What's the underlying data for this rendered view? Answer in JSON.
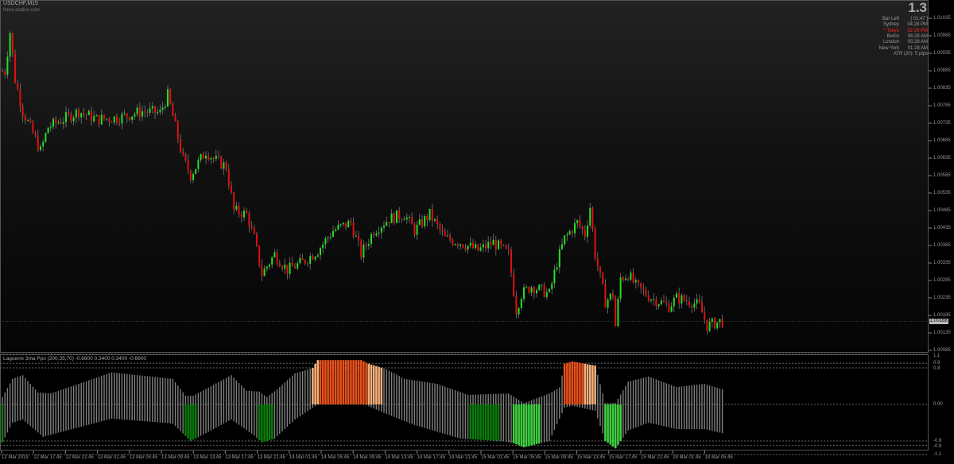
{
  "header": {
    "symbol": "USDCHF,M15",
    "site": "forex-station.com"
  },
  "info_panel": {
    "big_value": "1.3",
    "rows": [
      {
        "label": "Bar Left",
        "value": "[ 01:47 ]",
        "highlight": false
      },
      {
        "label": "Sydney",
        "value": "04:28 PM",
        "highlight": false
      },
      {
        "label": "* Tokyo",
        "value": "02:28 PM",
        "highlight": true
      },
      {
        "label": "Berlin",
        "value": "06:28 AM",
        "highlight": false
      },
      {
        "label": "London",
        "value": "05:28 AM",
        "highlight": false
      },
      {
        "label": "New York",
        "value": "01:28 AM",
        "highlight": false
      }
    ],
    "atr": "ATR (20): 5 pips",
    "highlight_color": "#ff2020"
  },
  "price_axis": {
    "labels": [
      "1.01035",
      "1.00985",
      "1.00935",
      "1.00885",
      "1.00835",
      "1.00785",
      "1.00735",
      "1.00685",
      "1.00635",
      "1.00585",
      "1.00535",
      "1.00485",
      "1.00435",
      "1.00385",
      "1.00335",
      "1.00285",
      "1.00235",
      "1.00185",
      "1.00135",
      "1.00085"
    ],
    "current_price": "1.00168"
  },
  "indicator": {
    "title": "Laguerre 3ma Ppo (200,35,70) -0.6600 0.3400 0.3400 -0.6600",
    "axis_labels": [
      "1.1",
      "0.9",
      "0.8",
      "0.00",
      "-0.8",
      "-0.9",
      "-1.1"
    ],
    "levels": [
      1.1,
      0.9,
      0.8,
      0,
      -0.8,
      -0.9,
      -1.1
    ],
    "upper": [
      [
        0,
        0.16
      ],
      [
        4,
        0.56
      ],
      [
        8,
        0.64
      ],
      [
        14,
        0.26
      ],
      [
        19,
        0.24
      ],
      [
        43,
        0.7
      ],
      [
        67,
        0.56
      ],
      [
        72,
        0.19
      ],
      [
        75,
        0.19
      ],
      [
        90,
        0.64
      ],
      [
        96,
        0.3
      ],
      [
        101,
        0.28
      ],
      [
        104,
        0.16
      ],
      [
        108,
        0.33
      ],
      [
        115,
        0.68
      ],
      [
        122,
        0.8
      ],
      [
        124,
        0.97
      ],
      [
        141,
        0.97
      ],
      [
        144,
        0.89
      ],
      [
        151,
        0.77
      ],
      [
        158,
        0.56
      ],
      [
        171,
        0.45
      ],
      [
        183,
        0.21
      ],
      [
        199,
        0.24
      ],
      [
        205,
        0.03
      ],
      [
        215,
        0.24
      ],
      [
        219,
        0.37
      ],
      [
        221,
        0.89
      ],
      [
        224,
        0.94
      ],
      [
        233,
        0.85
      ],
      [
        237,
        0.03
      ],
      [
        241,
        0.03
      ],
      [
        246,
        0.5
      ],
      [
        254,
        0.61
      ],
      [
        265,
        0.38
      ],
      [
        276,
        0.45
      ],
      [
        283,
        0.33
      ]
    ],
    "lower": [
      [
        0,
        -0.83
      ],
      [
        4,
        -0.4
      ],
      [
        8,
        -0.33
      ],
      [
        16,
        -0.71
      ],
      [
        43,
        -0.31
      ],
      [
        67,
        -0.42
      ],
      [
        74,
        -0.8
      ],
      [
        80,
        -0.63
      ],
      [
        90,
        -0.33
      ],
      [
        99,
        -0.68
      ],
      [
        102,
        -0.83
      ],
      [
        107,
        -0.75
      ],
      [
        115,
        -0.33
      ],
      [
        124,
        0
      ],
      [
        141,
        0
      ],
      [
        143,
        -0.02
      ],
      [
        152,
        -0.23
      ],
      [
        162,
        -0.45
      ],
      [
        180,
        -0.75
      ],
      [
        196,
        -0.8
      ],
      [
        201,
        -0.85
      ],
      [
        205,
        -0.94
      ],
      [
        215,
        -0.8
      ],
      [
        221,
        -0.07
      ],
      [
        224,
        -0.03
      ],
      [
        233,
        -0.14
      ],
      [
        237,
        -0.8
      ],
      [
        241,
        -0.96
      ],
      [
        246,
        -0.57
      ],
      [
        254,
        -0.4
      ],
      [
        265,
        -0.54
      ],
      [
        276,
        -0.54
      ],
      [
        283,
        -0.63
      ]
    ],
    "segments": [
      {
        "from": 0,
        "to": 1,
        "color": "#0a7a0a"
      },
      {
        "from": 72,
        "to": 77,
        "color": "#0a7a0a"
      },
      {
        "from": 101,
        "to": 107,
        "color": "#0a7a0a"
      },
      {
        "from": 184,
        "to": 196,
        "color": "#0a7a0a"
      },
      {
        "from": 201,
        "to": 212,
        "color": "#3fcf3f"
      },
      {
        "from": 237,
        "to": 244,
        "color": "#3fcf3f"
      },
      {
        "from": 122,
        "to": 125,
        "color": "#f5b07a"
      },
      {
        "from": 125,
        "to": 144,
        "color": "#e8501a"
      },
      {
        "from": 144,
        "to": 150,
        "color": "#f5b07a"
      },
      {
        "from": 221,
        "to": 229,
        "color": "#e8501a"
      },
      {
        "from": 229,
        "to": 234,
        "color": "#f5b07a"
      }
    ],
    "neutral_color": "#808080"
  },
  "time_axis": {
    "labels": [
      "12 Mar 2019",
      "12 Mar 17:45",
      "12 Mar 21:45",
      "13 Mar 01:45",
      "13 Mar 05:45",
      "13 Mar 09:45",
      "13 Mar 13:45",
      "13 Mar 17:45",
      "13 Mar 21:45",
      "14 Mar 01:45",
      "14 Mar 05:45",
      "14 Mar 09:45",
      "14 Mar 13:45",
      "14 Mar 17:45",
      "14 Mar 21:45",
      "15 Mar 01:45",
      "15 Mar 05:45",
      "15 Mar 09:45",
      "15 Mar 13:45",
      "15 Mar 17:45",
      "15 Mar 21:45",
      "18 Mar 01:45",
      "18 Mar 05:45"
    ]
  },
  "chart_data": {
    "type": "candlestick",
    "bull_color": "#22e022",
    "bear_color": "#e01010",
    "close_path": [
      [
        1,
        1.00883
      ],
      [
        3,
        1.00996
      ],
      [
        5,
        1.0086
      ],
      [
        8,
        1.00769
      ],
      [
        13,
        1.0069
      ],
      [
        15,
        1.00655
      ],
      [
        18,
        1.00724
      ],
      [
        24,
        1.00746
      ],
      [
        30,
        1.00769
      ],
      [
        37,
        1.00746
      ],
      [
        46,
        1.00751
      ],
      [
        55,
        1.00769
      ],
      [
        62,
        1.00765
      ],
      [
        65,
        1.00815
      ],
      [
        68,
        1.00724
      ],
      [
        71,
        1.00633
      ],
      [
        74,
        1.00587
      ],
      [
        80,
        1.00655
      ],
      [
        83,
        1.00633
      ],
      [
        88,
        1.0061
      ],
      [
        91,
        1.00485
      ],
      [
        96,
        1.00474
      ],
      [
        99,
        1.00405
      ],
      [
        102,
        1.00303
      ],
      [
        107,
        1.0036
      ],
      [
        112,
        1.00315
      ],
      [
        118,
        1.00337
      ],
      [
        124,
        1.00371
      ],
      [
        130,
        1.00428
      ],
      [
        137,
        1.00451
      ],
      [
        141,
        1.0036
      ],
      [
        146,
        1.00428
      ],
      [
        152,
        1.00462
      ],
      [
        158,
        1.00474
      ],
      [
        162,
        1.00428
      ],
      [
        168,
        1.00474
      ],
      [
        174,
        1.00405
      ],
      [
        180,
        1.00394
      ],
      [
        187,
        1.00371
      ],
      [
        193,
        1.00394
      ],
      [
        199,
        1.0036
      ],
      [
        202,
        1.00201
      ],
      [
        204,
        1.00246
      ],
      [
        208,
        1.00269
      ],
      [
        215,
        1.00246
      ],
      [
        218,
        1.00337
      ],
      [
        221,
        1.00405
      ],
      [
        226,
        1.00451
      ],
      [
        229,
        1.00417
      ],
      [
        231,
        1.00496
      ],
      [
        233,
        1.0036
      ],
      [
        237,
        1.00224
      ],
      [
        240,
        1.00246
      ],
      [
        241,
        1.00155
      ],
      [
        243,
        1.00292
      ],
      [
        246,
        1.00303
      ],
      [
        249,
        1.00269
      ],
      [
        255,
        1.00235
      ],
      [
        262,
        1.00212
      ],
      [
        265,
        1.00235
      ],
      [
        271,
        1.00224
      ],
      [
        274,
        1.00212
      ],
      [
        277,
        1.00155
      ],
      [
        282,
        1.00168
      ]
    ]
  }
}
